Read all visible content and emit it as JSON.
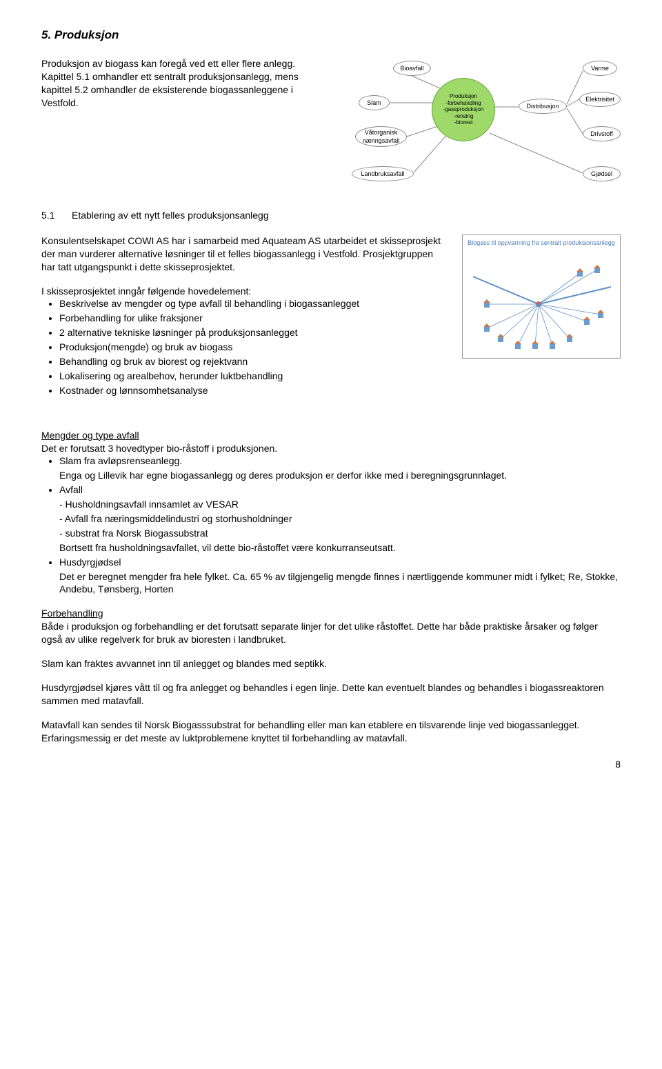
{
  "heading": "5. Produksjon",
  "intro_p1": "Produksjon av biogass kan foregå ved ett eller flere anlegg. Kapittel 5.1 omhandler ett sentralt produksjonsanlegg, mens kapittel 5.2 omhandler de eksisterende biogassanleggene i Vestfold.",
  "diagram1": {
    "nodes": {
      "bioavfall": "Bioavfall",
      "slam": "Slam",
      "vatorganisk": "Våtorganisk\nnæringsavfall",
      "landbruk": "Landbruksavfall",
      "distribusjon": "Distribusjon",
      "varme": "Varme",
      "elektrisitet": "Elektrisitet",
      "drivstoff": "Drivstoff",
      "gjodsel": "Gjødsel"
    },
    "center": "Produksjon\n-forbehandling\n-gassproduksjon\n-rensing\n-biorest",
    "center_fill": "#9ed96a",
    "center_stroke": "#5ca82f",
    "line_color": "#888888"
  },
  "section51": {
    "num": "5.1",
    "title": "Etablering av ett nytt felles produksjonsanlegg",
    "p1": "Konsulentselskapet COWI AS har i samarbeid med Aquateam AS utarbeidet et skisseprosjekt der man vurderer alternative løsninger til et felles biogassanlegg i Vestfold. Prosjektgruppen har tatt utgangspunkt i dette skisseprosjektet.",
    "p2_lead": "I skisseprosjektet inngår følgende hovedelement:",
    "bullets": [
      "Beskrivelse av mengder og type avfall til behandling i biogassanlegget",
      "Forbehandling for ulike fraksjoner",
      "2 alternative tekniske løsninger på produksjonsanlegget",
      "Produksjon(mengde) og bruk av biogass",
      "Behandling og bruk av biorest og rejektvann",
      "Lokalisering og arealbehov, herunder luktbehandling",
      "Kostnader og lønnsomhetsanalyse"
    ]
  },
  "diagram2": {
    "title": "Biogass til oppvarming fra sentralt produksjonsanlegg",
    "line_color": "#5a8fc9",
    "dot_color": "#d85c5c",
    "house_fill": "#6b9bd1",
    "house_roof": "#c97a4a"
  },
  "mengder": {
    "heading": "Mengder og type avfall",
    "intro": "Det er forutsatt 3 hovedtyper bio-råstoff i produksjonen.",
    "items": [
      {
        "label": "Slam fra avløpsrenseanlegg.",
        "sub": [
          "Enga og Lillevik har egne biogassanlegg og deres produksjon er derfor ikke med i beregningsgrunnlaget."
        ]
      },
      {
        "label": "Avfall",
        "sub": [
          "- Husholdningsavfall innsamlet av VESAR",
          "- Avfall fra næringsmiddelindustri og storhusholdninger",
          "- substrat fra Norsk Biogassubstrat",
          "Bortsett fra husholdningsavfallet, vil dette bio-råstoffet være konkurranseutsatt."
        ]
      },
      {
        "label": "Husdyrgjødsel",
        "sub": [
          "Det er beregnet mengder fra hele fylket. Ca. 65 % av tilgjengelig mengde finnes i nærtliggende kommuner midt i fylket; Re, Stokke, Andebu, Tønsberg, Horten"
        ]
      }
    ]
  },
  "forbehandling": {
    "heading": "Forbehandling",
    "p1": "Både i produksjon og forbehandling er det forutsatt separate linjer for det ulike råstoffet. Dette har både praktiske årsaker og følger også av ulike regelverk for bruk av bioresten i landbruket.",
    "p2": "Slam kan fraktes avvannet inn til anlegget og blandes med septikk.",
    "p3": "Husdyrgjødsel kjøres vått til og fra anlegget og behandles i egen linje. Dette kan eventuelt blandes og behandles i biogassreaktoren sammen med matavfall.",
    "p4": "Matavfall kan sendes til Norsk Biogasssubstrat for behandling eller man kan etablere en tilsvarende linje ved biogassanlegget. Erfaringsmessig er det meste av luktproblemene knyttet til forbehandling av matavfall."
  },
  "page_number": "8"
}
